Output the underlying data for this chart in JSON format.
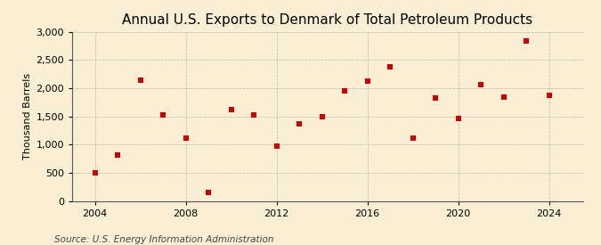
{
  "title": "Annual U.S. Exports to Denmark of Total Petroleum Products",
  "ylabel": "Thousand Barrels",
  "source": "Source: U.S. Energy Information Administration",
  "background_color": "#faefd4",
  "marker_color": "#cc0000",
  "years": [
    2004,
    2005,
    2006,
    2007,
    2008,
    2009,
    2010,
    2011,
    2012,
    2013,
    2014,
    2015,
    2016,
    2017,
    2018,
    2019,
    2020,
    2021,
    2022,
    2023,
    2024
  ],
  "values": [
    500,
    810,
    2140,
    1530,
    1110,
    150,
    1620,
    1520,
    970,
    1370,
    1490,
    1960,
    2120,
    2380,
    1110,
    1820,
    1470,
    2060,
    1840,
    2840,
    1880
  ],
  "ylim": [
    0,
    3000
  ],
  "yticks": [
    0,
    500,
    1000,
    1500,
    2000,
    2500,
    3000
  ],
  "xticks": [
    2004,
    2008,
    2012,
    2016,
    2020,
    2024
  ],
  "grid_color": "#aaaaaa",
  "title_fontsize": 11,
  "label_fontsize": 8,
  "tick_fontsize": 8,
  "source_fontsize": 7.5
}
